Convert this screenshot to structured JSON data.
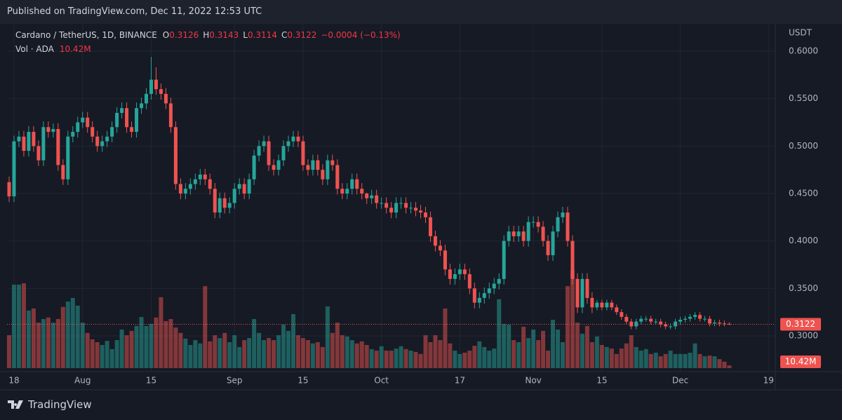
{
  "published": "Published on TradingView.com, Dec 11, 2022 12:53 UTC",
  "footer": "TradingView",
  "chart_data": {
    "type": "candlestick",
    "title": "Cardano / TetherUS, 1D, BINANCE",
    "ohlc_legend": [
      {
        "label": "O",
        "value": "0.3126"
      },
      {
        "label": "H",
        "value": "0.3143"
      },
      {
        "label": "L",
        "value": "0.3114"
      },
      {
        "label": "C",
        "value": "0.3122"
      }
    ],
    "change": "−0.0004 (−0.13%)",
    "y_unit": "USDT",
    "up_color": "#26a69a",
    "down_color": "#ef5350",
    "open": [
      0.462,
      0.447,
      0.505,
      0.51,
      0.495,
      0.515,
      0.5,
      0.485,
      0.52,
      0.515,
      0.518,
      0.48,
      0.465,
      0.51,
      0.515,
      0.525,
      0.53,
      0.52,
      0.51,
      0.5,
      0.505,
      0.51,
      0.52,
      0.535,
      0.54,
      0.52,
      0.515,
      0.54,
      0.545,
      0.555,
      0.57,
      0.56,
      0.555,
      0.545,
      0.52,
      0.46,
      0.45,
      0.455,
      0.46,
      0.465,
      0.47,
      0.465,
      0.455,
      0.43,
      0.445,
      0.435,
      0.44,
      0.455,
      0.46,
      0.45,
      0.465,
      0.49,
      0.5,
      0.505,
      0.48,
      0.475,
      0.485,
      0.5,
      0.505,
      0.51,
      0.505,
      0.48,
      0.475,
      0.485,
      0.475,
      0.465,
      0.485,
      0.48,
      0.455,
      0.45,
      0.455,
      0.465,
      0.455,
      0.45,
      0.445,
      0.448,
      0.44,
      0.44,
      0.435,
      0.43,
      0.44,
      0.44,
      0.435,
      0.435,
      0.432,
      0.43,
      0.425,
      0.405,
      0.395,
      0.39,
      0.37,
      0.36,
      0.365,
      0.37,
      0.365,
      0.35,
      0.335,
      0.34,
      0.345,
      0.35,
      0.355,
      0.36,
      0.4,
      0.41,
      0.405,
      0.41,
      0.4,
      0.42,
      0.42,
      0.415,
      0.4,
      0.385,
      0.41,
      0.425,
      0.43,
      0.4,
      0.36,
      0.33,
      0.36,
      0.34,
      0.33,
      0.335,
      0.33,
      0.335,
      0.33,
      0.325,
      0.32,
      0.315,
      0.31,
      0.315,
      0.318,
      0.318,
      0.315,
      0.315,
      0.312,
      0.31,
      0.31,
      0.315,
      0.317,
      0.318,
      0.32,
      0.322,
      0.318,
      0.318,
      0.313,
      0.314,
      0.313,
      0.3126
    ],
    "high": [
      0.468,
      0.511,
      0.516,
      0.516,
      0.521,
      0.521,
      0.506,
      0.526,
      0.526,
      0.524,
      0.524,
      0.486,
      0.516,
      0.521,
      0.531,
      0.536,
      0.536,
      0.526,
      0.516,
      0.511,
      0.516,
      0.526,
      0.541,
      0.546,
      0.546,
      0.526,
      0.546,
      0.551,
      0.561,
      0.594,
      0.583,
      0.566,
      0.561,
      0.551,
      0.526,
      0.466,
      0.461,
      0.466,
      0.471,
      0.476,
      0.476,
      0.471,
      0.461,
      0.451,
      0.451,
      0.446,
      0.461,
      0.466,
      0.466,
      0.471,
      0.496,
      0.506,
      0.511,
      0.511,
      0.486,
      0.491,
      0.506,
      0.511,
      0.516,
      0.516,
      0.511,
      0.486,
      0.491,
      0.491,
      0.481,
      0.491,
      0.491,
      0.486,
      0.461,
      0.461,
      0.471,
      0.471,
      0.461,
      0.451,
      0.454,
      0.454,
      0.446,
      0.446,
      0.441,
      0.446,
      0.446,
      0.446,
      0.441,
      0.441,
      0.438,
      0.436,
      0.431,
      0.411,
      0.401,
      0.396,
      0.376,
      0.371,
      0.376,
      0.376,
      0.371,
      0.356,
      0.346,
      0.351,
      0.356,
      0.361,
      0.366,
      0.406,
      0.416,
      0.416,
      0.416,
      0.416,
      0.426,
      0.426,
      0.426,
      0.421,
      0.406,
      0.416,
      0.431,
      0.436,
      0.436,
      0.406,
      0.366,
      0.366,
      0.366,
      0.346,
      0.338,
      0.338,
      0.338,
      0.338,
      0.333,
      0.328,
      0.323,
      0.318,
      0.318,
      0.321,
      0.321,
      0.321,
      0.318,
      0.318,
      0.315,
      0.313,
      0.318,
      0.32,
      0.321,
      0.323,
      0.325,
      0.325,
      0.321,
      0.321,
      0.317,
      0.317,
      0.316,
      0.3143
    ],
    "low": [
      0.441,
      0.441,
      0.499,
      0.489,
      0.489,
      0.494,
      0.479,
      0.479,
      0.509,
      0.509,
      0.474,
      0.459,
      0.459,
      0.504,
      0.509,
      0.519,
      0.514,
      0.504,
      0.494,
      0.494,
      0.499,
      0.504,
      0.514,
      0.529,
      0.514,
      0.509,
      0.509,
      0.534,
      0.539,
      0.549,
      0.554,
      0.549,
      0.539,
      0.514,
      0.454,
      0.444,
      0.444,
      0.449,
      0.454,
      0.459,
      0.459,
      0.449,
      0.424,
      0.424,
      0.429,
      0.429,
      0.434,
      0.449,
      0.444,
      0.444,
      0.459,
      0.484,
      0.494,
      0.474,
      0.469,
      0.469,
      0.479,
      0.494,
      0.499,
      0.499,
      0.474,
      0.469,
      0.469,
      0.469,
      0.459,
      0.459,
      0.474,
      0.449,
      0.444,
      0.444,
      0.449,
      0.449,
      0.444,
      0.439,
      0.439,
      0.434,
      0.434,
      0.429,
      0.424,
      0.424,
      0.434,
      0.429,
      0.429,
      0.426,
      0.424,
      0.419,
      0.399,
      0.389,
      0.384,
      0.364,
      0.354,
      0.354,
      0.359,
      0.359,
      0.344,
      0.329,
      0.329,
      0.334,
      0.339,
      0.344,
      0.349,
      0.354,
      0.394,
      0.399,
      0.399,
      0.394,
      0.394,
      0.414,
      0.409,
      0.394,
      0.379,
      0.379,
      0.404,
      0.419,
      0.394,
      0.354,
      0.324,
      0.324,
      0.334,
      0.324,
      0.327,
      0.327,
      0.327,
      0.327,
      0.322,
      0.317,
      0.312,
      0.307,
      0.307,
      0.312,
      0.315,
      0.312,
      0.312,
      0.309,
      0.307,
      0.307,
      0.307,
      0.312,
      0.314,
      0.315,
      0.317,
      0.315,
      0.315,
      0.31,
      0.31,
      0.31,
      0.31,
      0.3114
    ],
    "close": [
      0.447,
      0.505,
      0.51,
      0.495,
      0.515,
      0.5,
      0.485,
      0.52,
      0.515,
      0.518,
      0.48,
      0.465,
      0.51,
      0.515,
      0.525,
      0.53,
      0.52,
      0.51,
      0.5,
      0.505,
      0.51,
      0.52,
      0.535,
      0.54,
      0.52,
      0.515,
      0.54,
      0.545,
      0.555,
      0.57,
      0.56,
      0.555,
      0.545,
      0.52,
      0.46,
      0.45,
      0.455,
      0.46,
      0.465,
      0.47,
      0.465,
      0.455,
      0.43,
      0.445,
      0.435,
      0.44,
      0.455,
      0.46,
      0.45,
      0.465,
      0.49,
      0.5,
      0.505,
      0.48,
      0.475,
      0.485,
      0.5,
      0.505,
      0.51,
      0.505,
      0.48,
      0.475,
      0.485,
      0.475,
      0.465,
      0.485,
      0.48,
      0.455,
      0.45,
      0.455,
      0.465,
      0.455,
      0.45,
      0.445,
      0.448,
      0.44,
      0.44,
      0.435,
      0.43,
      0.44,
      0.44,
      0.435,
      0.435,
      0.432,
      0.43,
      0.425,
      0.405,
      0.395,
      0.39,
      0.37,
      0.36,
      0.365,
      0.37,
      0.365,
      0.35,
      0.335,
      0.34,
      0.345,
      0.35,
      0.355,
      0.36,
      0.4,
      0.41,
      0.405,
      0.41,
      0.4,
      0.42,
      0.42,
      0.415,
      0.4,
      0.385,
      0.41,
      0.425,
      0.43,
      0.4,
      0.36,
      0.33,
      0.36,
      0.34,
      0.33,
      0.335,
      0.33,
      0.335,
      0.33,
      0.325,
      0.32,
      0.315,
      0.31,
      0.315,
      0.318,
      0.318,
      0.315,
      0.315,
      0.312,
      0.31,
      0.31,
      0.315,
      0.317,
      0.318,
      0.32,
      0.322,
      0.318,
      0.318,
      0.313,
      0.314,
      0.313,
      0.3126,
      0.3122
    ],
    "volume": {
      "name": "Vol · ADA",
      "last_value_label": "10.42M",
      "values": [
        128,
        325,
        325,
        330,
        224,
        232,
        177,
        191,
        197,
        177,
        191,
        238,
        259,
        273,
        243,
        177,
        137,
        112,
        101,
        90,
        106,
        74,
        109,
        150,
        128,
        145,
        164,
        199,
        164,
        172,
        197,
        276,
        183,
        191,
        158,
        137,
        115,
        90,
        109,
        96,
        319,
        104,
        128,
        117,
        137,
        101,
        128,
        82,
        109,
        117,
        191,
        137,
        109,
        117,
        109,
        128,
        169,
        145,
        210,
        128,
        117,
        109,
        96,
        101,
        82,
        240,
        137,
        177,
        128,
        123,
        109,
        96,
        104,
        90,
        74,
        68,
        85,
        68,
        68,
        76,
        85,
        74,
        68,
        63,
        55,
        128,
        101,
        128,
        109,
        232,
        96,
        68,
        55,
        60,
        68,
        87,
        104,
        82,
        68,
        76,
        268,
        172,
        169,
        109,
        101,
        161,
        117,
        150,
        109,
        145,
        68,
        188,
        150,
        101,
        319,
        382,
        177,
        134,
        164,
        101,
        123,
        90,
        82,
        76,
        55,
        76,
        96,
        128,
        82,
        68,
        74,
        55,
        60,
        46,
        55,
        68,
        55,
        55,
        55,
        60,
        96,
        55,
        46,
        49,
        46,
        35,
        25,
        10.42
      ]
    },
    "last_price_label": "0.3122",
    "xlim": [
      -0.43,
      156.4
    ],
    "xticks": [
      {
        "value": 1,
        "label": "18"
      },
      {
        "value": 15,
        "label": "Aug"
      },
      {
        "value": 29,
        "label": "15"
      },
      {
        "value": 46,
        "label": "Sep"
      },
      {
        "value": 60,
        "label": "15"
      },
      {
        "value": 76,
        "label": "Oct"
      },
      {
        "value": 92,
        "label": "17"
      },
      {
        "value": 107,
        "label": "Nov"
      },
      {
        "value": 121,
        "label": "15"
      },
      {
        "value": 137,
        "label": "Dec"
      },
      {
        "value": 155,
        "label": "19"
      }
    ],
    "ylim": [
      0.266,
      0.6244
    ],
    "yticks": [
      {
        "value": 0.3,
        "label": "0.3000"
      },
      {
        "value": 0.35,
        "label": "0.3500"
      },
      {
        "value": 0.4,
        "label": "0.4000"
      },
      {
        "value": 0.45,
        "label": "0.4500"
      },
      {
        "value": 0.5,
        "label": "0.5000"
      },
      {
        "value": 0.55,
        "label": "0.5500"
      },
      {
        "value": 0.6,
        "label": "0.6000"
      }
    ],
    "grid": true
  }
}
